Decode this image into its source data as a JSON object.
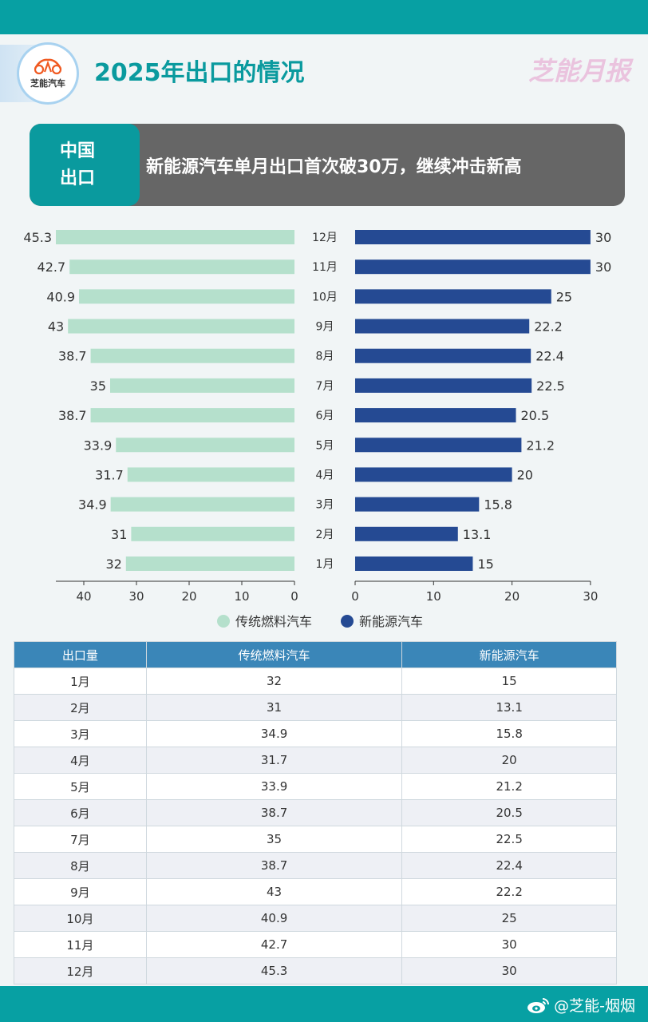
{
  "header": {
    "logo_text": "芝能汽车",
    "title": "2025年出口的情况",
    "brand": "芝能月报"
  },
  "banner": {
    "tag_line1": "中国",
    "tag_line2": "出口",
    "message": "新能源汽车单月出口首次破30万，继续冲击新高"
  },
  "chart_data": {
    "type": "bar",
    "orientation": "horizontal-butterfly",
    "categories": [
      "12月",
      "11月",
      "10月",
      "9月",
      "8月",
      "7月",
      "6月",
      "5月",
      "4月",
      "3月",
      "2月",
      "1月"
    ],
    "series": [
      {
        "name": "传统燃料汽车",
        "color": "#b5e0cc",
        "values": [
          45.3,
          42.7,
          40.9,
          43,
          38.7,
          35,
          38.7,
          33.9,
          31.7,
          34.9,
          31,
          32
        ],
        "axis_ticks": [
          "40",
          "30",
          "20",
          "10",
          "0"
        ],
        "xlim": [
          0,
          45.3
        ]
      },
      {
        "name": "新能源汽车",
        "color": "#254a93",
        "values": [
          30,
          30,
          25,
          22.2,
          22.4,
          22.5,
          20.5,
          21.2,
          20,
          15.8,
          13.1,
          15
        ],
        "axis_ticks": [
          "0",
          "10",
          "20",
          "30"
        ],
        "xlim": [
          0,
          30
        ]
      }
    ],
    "legend_position": "bottom",
    "grid": false
  },
  "table": {
    "headers": [
      "出口量",
      "传统燃料汽车",
      "新能源汽车"
    ],
    "rows": [
      [
        "1月",
        "32",
        "15"
      ],
      [
        "2月",
        "31",
        "13.1"
      ],
      [
        "3月",
        "34.9",
        "15.8"
      ],
      [
        "4月",
        "31.7",
        "20"
      ],
      [
        "5月",
        "33.9",
        "21.2"
      ],
      [
        "6月",
        "38.7",
        "20.5"
      ],
      [
        "7月",
        "35",
        "22.5"
      ],
      [
        "8月",
        "38.7",
        "22.4"
      ],
      [
        "9月",
        "43",
        "22.2"
      ],
      [
        "10月",
        "40.9",
        "25"
      ],
      [
        "11月",
        "42.7",
        "30"
      ],
      [
        "12月",
        "45.3",
        "30"
      ]
    ]
  },
  "footer": {
    "handle": "@芝能-烟烟",
    "icon": "weibo-icon"
  }
}
